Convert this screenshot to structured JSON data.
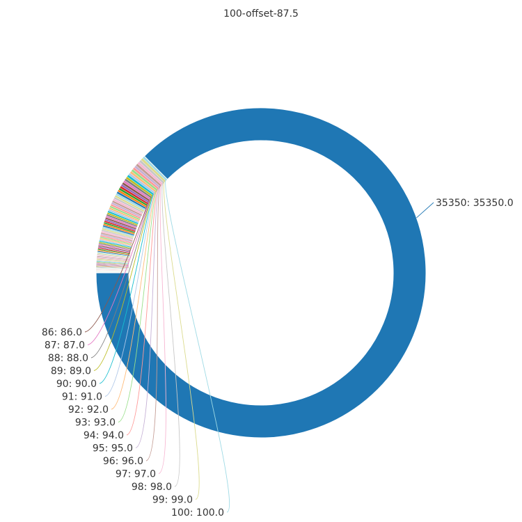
{
  "chart_data": {
    "type": "pie",
    "title": "100-offset-87.5",
    "donut": true,
    "start_angle_deg": 180,
    "direction": "clockwise",
    "values": [
      1,
      2,
      3,
      4,
      5,
      6,
      7,
      8,
      9,
      10,
      11,
      12,
      13,
      14,
      15,
      16,
      17,
      18,
      19,
      20,
      21,
      22,
      23,
      24,
      25,
      26,
      27,
      28,
      29,
      30,
      31,
      32,
      33,
      34,
      35,
      36,
      37,
      38,
      39,
      40,
      41,
      42,
      43,
      44,
      45,
      46,
      47,
      48,
      49,
      50,
      51,
      52,
      53,
      54,
      55,
      56,
      57,
      58,
      59,
      60,
      61,
      62,
      63,
      64,
      65,
      66,
      67,
      68,
      69,
      70,
      71,
      72,
      73,
      74,
      75,
      76,
      77,
      78,
      79,
      80,
      81,
      82,
      83,
      84,
      85,
      86,
      87,
      88,
      89,
      90,
      91,
      92,
      93,
      94,
      95,
      96,
      97,
      98,
      99,
      100,
      35350
    ],
    "labeled_slices": [
      {
        "name": "86",
        "value": 86,
        "label": "86: 86.0"
      },
      {
        "name": "87",
        "value": 87,
        "label": "87: 87.0"
      },
      {
        "name": "88",
        "value": 88,
        "label": "88: 88.0"
      },
      {
        "name": "89",
        "value": 89,
        "label": "89: 89.0"
      },
      {
        "name": "90",
        "value": 90,
        "label": "90: 90.0"
      },
      {
        "name": "91",
        "value": 91,
        "label": "91: 91.0"
      },
      {
        "name": "92",
        "value": 92,
        "label": "92: 92.0"
      },
      {
        "name": "93",
        "value": 93,
        "label": "93: 93.0"
      },
      {
        "name": "94",
        "value": 94,
        "label": "94: 94.0"
      },
      {
        "name": "95",
        "value": 95,
        "label": "95: 95.0"
      },
      {
        "name": "96",
        "value": 96,
        "label": "96: 96.0"
      },
      {
        "name": "97",
        "value": 97,
        "label": "97: 97.0"
      },
      {
        "name": "98",
        "value": 98,
        "label": "98: 98.0"
      },
      {
        "name": "99",
        "value": 99,
        "label": "99: 99.0"
      },
      {
        "name": "100",
        "value": 100,
        "label": "100: 100.0"
      },
      {
        "name": "35350",
        "value": 35350,
        "label": "35350: 35350.0"
      }
    ],
    "palette": [
      "#1f77b4",
      "#ff7f0e",
      "#2ca02c",
      "#d62728",
      "#9467bd",
      "#8c564b",
      "#e377c2",
      "#7f7f7f",
      "#bcbd22",
      "#17becf",
      "#aec7e8",
      "#ffbb78",
      "#98df8a",
      "#ff9896",
      "#c5b0d5",
      "#c49c94",
      "#f7b6d2",
      "#c7c7c7",
      "#dbdb8d",
      "#9edae5"
    ],
    "large_slice_color": "#1f77b4",
    "legend": "none"
  }
}
